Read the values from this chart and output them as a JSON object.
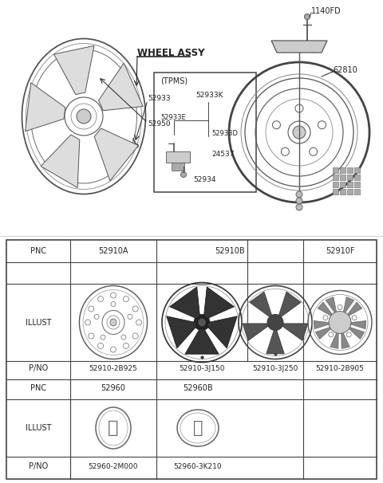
{
  "bg_color": "#ffffff",
  "fig_w": 4.8,
  "fig_h": 6.06,
  "dpi": 100,
  "top_parts": [
    "52933",
    "52950",
    "52933K",
    "52933E",
    "52933D",
    "24537",
    "52934",
    "62810",
    "1140FD"
  ],
  "table_pnc1": [
    "52910A",
    "52910B",
    "52910F"
  ],
  "table_pno1": [
    "52910-2B925",
    "52910-3J150",
    "52910-3J250",
    "52910-2B905"
  ],
  "table_pnc2": [
    "52960",
    "52960B"
  ],
  "table_pno2": [
    "52960-2M000",
    "52960-3K210"
  ],
  "label_pnc": "PNC",
  "label_illust": "ILLUST",
  "label_pno": "P/NO",
  "label_wheel_assy": "WHEEL ASSY",
  "label_tpms": "(TPMS)"
}
